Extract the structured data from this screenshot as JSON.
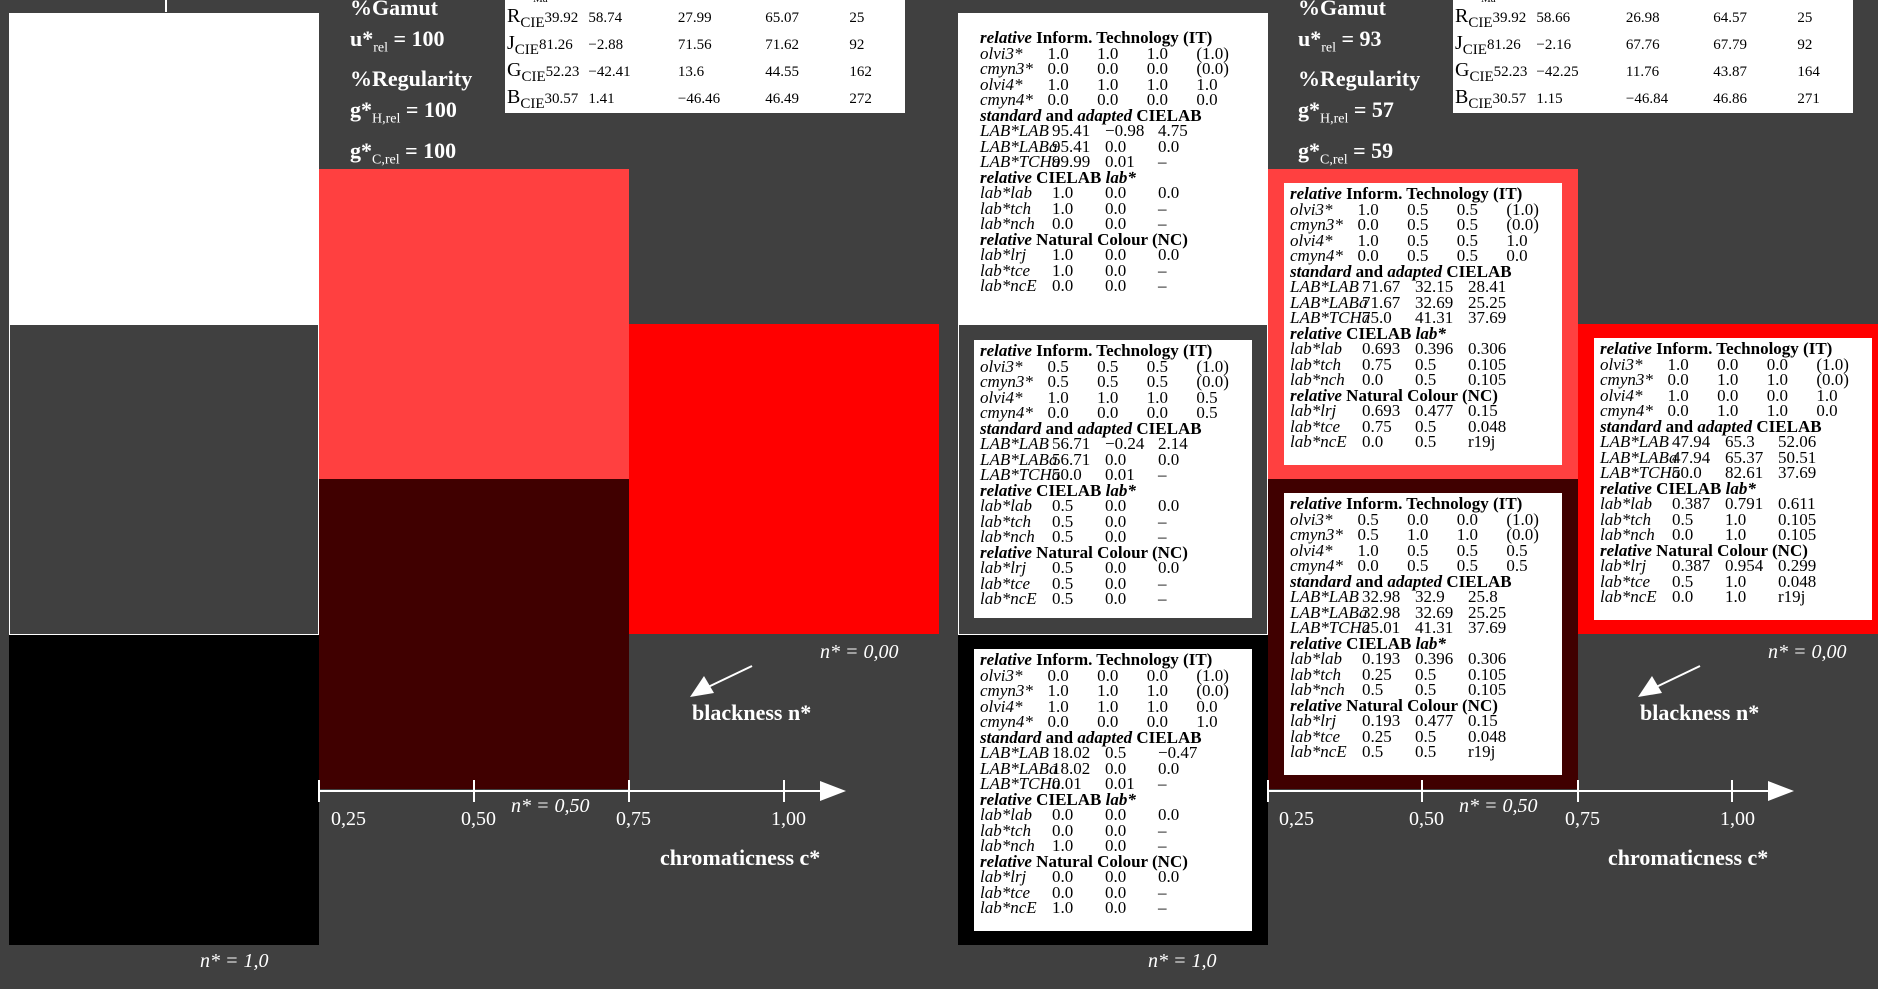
{
  "left_panel": {
    "info": {
      "gamut_label": "%Gamut",
      "u_rel_label": "u*",
      "u_rel_sub": "rel",
      "u_rel_value": " = 100",
      "regularity_label": "%Regularity",
      "gH_label": "g*",
      "gH_sub": "H,rel",
      "gH_value": " = 100",
      "gC_label": "g*",
      "gC_sub": "C,rel",
      "gC_value": " = 100"
    },
    "table_rows": [
      {
        "name": "R",
        "sub": "CIE",
        "v1": "39.92",
        "v2": "58.74",
        "v3": "27.99",
        "v4": "65.07",
        "v5": "25"
      },
      {
        "name": "J",
        "sub": "CIE",
        "v1": "81.26",
        "v2": "−2.88",
        "v3": "71.56",
        "v4": "71.62",
        "v5": "92"
      },
      {
        "name": "G",
        "sub": "CIE",
        "v1": "52.23",
        "v2": "−42.41",
        "v3": "13.6",
        "v4": "44.55",
        "v5": "162"
      },
      {
        "name": "B",
        "sub": "CIE",
        "v1": "30.57",
        "v2": "1.41",
        "v3": "−46.46",
        "v4": "46.49",
        "v5": "272"
      }
    ],
    "table_header_fragment": "Ma",
    "axis": {
      "ticks": [
        "0,25",
        "0,50",
        "0,75",
        "1,00"
      ],
      "n_050": "n* = 0,50",
      "n_000": "n* = 0,00",
      "n_10": "n* = 1,0",
      "blackness": "blackness n*",
      "chromaticness": "chromaticness c*"
    },
    "colors": {
      "white": "#ffffff",
      "grey": "#404040",
      "black": "#000000",
      "light_red": "#ff4040",
      "dark_red": "#400000",
      "red": "#ff0000"
    }
  },
  "right_panel": {
    "info": {
      "gamut_label": "%Gamut",
      "u_rel_label": "u*",
      "u_rel_sub": "rel",
      "u_rel_value": " = 93",
      "regularity_label": "%Regularity",
      "gH_label": "g*",
      "gH_sub": "H,rel",
      "gH_value": " = 57",
      "gC_label": "g*",
      "gC_sub": "C,rel",
      "gC_value": " = 59"
    },
    "table_rows": [
      {
        "name": "R",
        "sub": "CIE",
        "v1": "39.92",
        "v2": "58.66",
        "v3": "26.98",
        "v4": "64.57",
        "v5": "25"
      },
      {
        "name": "J",
        "sub": "CIE",
        "v1": "81.26",
        "v2": "−2.16",
        "v3": "67.76",
        "v4": "67.79",
        "v5": "92"
      },
      {
        "name": "G",
        "sub": "CIE",
        "v1": "52.23",
        "v2": "−42.25",
        "v3": "11.76",
        "v4": "43.87",
        "v5": "164"
      },
      {
        "name": "B",
        "sub": "CIE",
        "v1": "30.57",
        "v2": "1.15",
        "v3": "−46.84",
        "v4": "46.86",
        "v5": "271"
      }
    ],
    "table_header_fragment": "Ma",
    "axis": {
      "ticks": [
        "0,25",
        "0,50",
        "0,75",
        "1,00"
      ],
      "n_050": "n* = 0,50",
      "n_000": "n* = 0,00",
      "n_10": "n* = 1,0",
      "blackness": "blackness n*",
      "chromaticness": "chromaticness c*"
    },
    "colors": {
      "white": "#ffffff",
      "grey": "#404040",
      "black": "#000000",
      "light_red": "#ff4040",
      "dark_red": "#400000",
      "red": "#ff0000"
    }
  },
  "cards": {
    "white": {
      "it": [
        [
          "olvi3*",
          "1.0",
          "1.0",
          "1.0",
          "(1.0)"
        ],
        [
          "cmyn3*",
          "0.0",
          "0.0",
          "0.0",
          "(0.0)"
        ],
        [
          "olvi4*",
          "1.0",
          "1.0",
          "1.0",
          "1.0"
        ],
        [
          "cmyn4*",
          "0.0",
          "0.0",
          "0.0",
          "0.0"
        ]
      ],
      "lab": [
        [
          "LAB*LAB",
          "95.41",
          "−0.98",
          "4.75"
        ],
        [
          "LAB*LABa",
          "95.41",
          "0.0",
          "0.0"
        ],
        [
          "LAB*TCHa",
          "99.99",
          "0.01",
          "–"
        ]
      ],
      "rel": [
        [
          "lab*lab",
          "1.0",
          "0.0",
          "0.0"
        ],
        [
          "lab*tch",
          "1.0",
          "0.0",
          "–"
        ],
        [
          "lab*nch",
          "0.0",
          "0.0",
          "–"
        ]
      ],
      "nc": [
        [
          "lab*lrj",
          "1.0",
          "0.0",
          "0.0"
        ],
        [
          "lab*tce",
          "1.0",
          "0.0",
          "–"
        ],
        [
          "lab*ncE",
          "0.0",
          "0.0",
          "–"
        ]
      ]
    },
    "grey": {
      "it": [
        [
          "olvi3*",
          "0.5",
          "0.5",
          "0.5",
          "(1.0)"
        ],
        [
          "cmyn3*",
          "0.5",
          "0.5",
          "0.5",
          "(0.0)"
        ],
        [
          "olvi4*",
          "1.0",
          "1.0",
          "1.0",
          "0.5"
        ],
        [
          "cmyn4*",
          "0.0",
          "0.0",
          "0.0",
          "0.5"
        ]
      ],
      "lab": [
        [
          "LAB*LAB",
          "56.71",
          "−0.24",
          "2.14"
        ],
        [
          "LAB*LABa",
          "56.71",
          "0.0",
          "0.0"
        ],
        [
          "LAB*TCHa",
          "50.0",
          "0.01",
          "–"
        ]
      ],
      "rel": [
        [
          "lab*lab",
          "0.5",
          "0.0",
          "0.0"
        ],
        [
          "lab*tch",
          "0.5",
          "0.0",
          "–"
        ],
        [
          "lab*nch",
          "0.5",
          "0.0",
          "–"
        ]
      ],
      "nc": [
        [
          "lab*lrj",
          "0.5",
          "0.0",
          "0.0"
        ],
        [
          "lab*tce",
          "0.5",
          "0.0",
          "–"
        ],
        [
          "lab*ncE",
          "0.5",
          "0.0",
          "–"
        ]
      ]
    },
    "black": {
      "it": [
        [
          "olvi3*",
          "0.0",
          "0.0",
          "0.0",
          "(1.0)"
        ],
        [
          "cmyn3*",
          "1.0",
          "1.0",
          "1.0",
          "(0.0)"
        ],
        [
          "olvi4*",
          "1.0",
          "1.0",
          "1.0",
          "0.0"
        ],
        [
          "cmyn4*",
          "0.0",
          "0.0",
          "0.0",
          "1.0"
        ]
      ],
      "lab": [
        [
          "LAB*LAB",
          "18.02",
          "0.5",
          "−0.47"
        ],
        [
          "LAB*LABa",
          "18.02",
          "0.0",
          "0.0"
        ],
        [
          "LAB*TCHa",
          "0.01",
          "0.01",
          "–"
        ]
      ],
      "rel": [
        [
          "lab*lab",
          "0.0",
          "0.0",
          "0.0"
        ],
        [
          "lab*tch",
          "0.0",
          "0.0",
          "–"
        ],
        [
          "lab*nch",
          "1.0",
          "0.0",
          "–"
        ]
      ],
      "nc": [
        [
          "lab*lrj",
          "0.0",
          "0.0",
          "0.0"
        ],
        [
          "lab*tce",
          "0.0",
          "0.0",
          "–"
        ],
        [
          "lab*ncE",
          "1.0",
          "0.0",
          "–"
        ]
      ]
    },
    "light_red": {
      "it": [
        [
          "olvi3*",
          "1.0",
          "0.5",
          "0.5",
          "(1.0)"
        ],
        [
          "cmyn3*",
          "0.0",
          "0.5",
          "0.5",
          "(0.0)"
        ],
        [
          "olvi4*",
          "1.0",
          "0.5",
          "0.5",
          "1.0"
        ],
        [
          "cmyn4*",
          "0.0",
          "0.5",
          "0.5",
          "0.0"
        ]
      ],
      "lab": [
        [
          "LAB*LAB",
          "71.67",
          "32.15",
          "28.41"
        ],
        [
          "LAB*LABa",
          "71.67",
          "32.69",
          "25.25"
        ],
        [
          "LAB*TCHa",
          "75.0",
          "41.31",
          "37.69"
        ]
      ],
      "rel": [
        [
          "lab*lab",
          "0.693",
          "0.396",
          "0.306"
        ],
        [
          "lab*tch",
          "0.75",
          "0.5",
          "0.105"
        ],
        [
          "lab*nch",
          "0.0",
          "0.5",
          "0.105"
        ]
      ],
      "nc": [
        [
          "lab*lrj",
          "0.693",
          "0.477",
          "0.15"
        ],
        [
          "lab*tce",
          "0.75",
          "0.5",
          "0.048"
        ],
        [
          "lab*ncE",
          "0.0",
          "0.5",
          "r19j"
        ]
      ]
    },
    "dark_red": {
      "it": [
        [
          "olvi3*",
          "0.5",
          "0.0",
          "0.0",
          "(1.0)"
        ],
        [
          "cmyn3*",
          "0.5",
          "1.0",
          "1.0",
          "(0.0)"
        ],
        [
          "olvi4*",
          "1.0",
          "0.5",
          "0.5",
          "0.5"
        ],
        [
          "cmyn4*",
          "0.0",
          "0.5",
          "0.5",
          "0.5"
        ]
      ],
      "lab": [
        [
          "LAB*LAB",
          "32.98",
          "32.9",
          "25.8"
        ],
        [
          "LAB*LABa",
          "32.98",
          "32.69",
          "25.25"
        ],
        [
          "LAB*TCHa",
          "25.01",
          "41.31",
          "37.69"
        ]
      ],
      "rel": [
        [
          "lab*lab",
          "0.193",
          "0.396",
          "0.306"
        ],
        [
          "lab*tch",
          "0.25",
          "0.5",
          "0.105"
        ],
        [
          "lab*nch",
          "0.5",
          "0.5",
          "0.105"
        ]
      ],
      "nc": [
        [
          "lab*lrj",
          "0.193",
          "0.477",
          "0.15"
        ],
        [
          "lab*tce",
          "0.25",
          "0.5",
          "0.048"
        ],
        [
          "lab*ncE",
          "0.5",
          "0.5",
          "r19j"
        ]
      ]
    },
    "red": {
      "it": [
        [
          "olvi3*",
          "1.0",
          "0.0",
          "0.0",
          "(1.0)"
        ],
        [
          "cmyn3*",
          "0.0",
          "1.0",
          "1.0",
          "(0.0)"
        ],
        [
          "olvi4*",
          "1.0",
          "0.0",
          "0.0",
          "1.0"
        ],
        [
          "cmyn4*",
          "0.0",
          "1.0",
          "1.0",
          "0.0"
        ]
      ],
      "lab": [
        [
          "LAB*LAB",
          "47.94",
          "65.3",
          "52.06"
        ],
        [
          "LAB*LABa",
          "47.94",
          "65.37",
          "50.51"
        ],
        [
          "LAB*TCHa",
          "50.0",
          "82.61",
          "37.69"
        ]
      ],
      "rel": [
        [
          "lab*lab",
          "0.387",
          "0.791",
          "0.611"
        ],
        [
          "lab*tch",
          "0.5",
          "1.0",
          "0.105"
        ],
        [
          "lab*nch",
          "0.0",
          "1.0",
          "0.105"
        ]
      ],
      "nc": [
        [
          "lab*lrj",
          "0.387",
          "0.954",
          "0.299"
        ],
        [
          "lab*tce",
          "0.5",
          "1.0",
          "0.048"
        ],
        [
          "lab*ncE",
          "0.0",
          "1.0",
          "r19j"
        ]
      ]
    },
    "headers": {
      "it_a": "relative",
      "it_b": " Inform. Technology (IT)",
      "lab_a": "standard",
      "lab_b": " and ",
      "lab_c": "adapted",
      "lab_d": " CIELAB",
      "rel_a": "relative",
      "rel_b": " CIELAB ",
      "rel_c": "lab*",
      "nc_a": "relative",
      "nc_b": " Natural Colour (NC)"
    }
  }
}
